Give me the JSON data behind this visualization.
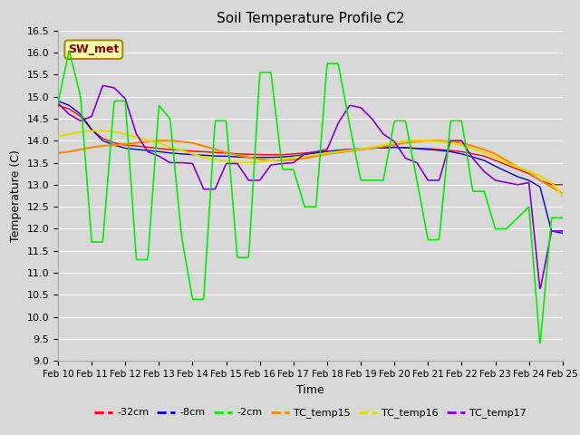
{
  "title": "Soil Temperature Profile C2",
  "xlabel": "Time",
  "ylabel": "Temperature (C)",
  "ylim": [
    9.0,
    16.5
  ],
  "yticks": [
    9.0,
    9.5,
    10.0,
    10.5,
    11.0,
    11.5,
    12.0,
    12.5,
    13.0,
    13.5,
    14.0,
    14.5,
    15.0,
    15.5,
    16.0,
    16.5
  ],
  "bg_color": "#d8d8d8",
  "series_colors": {
    "neg32cm": "#ff0000",
    "neg8cm": "#0000cc",
    "neg2cm": "#00ee00",
    "TC_temp15": "#ff8800",
    "TC_temp16": "#dddd00",
    "TC_temp17": "#8800cc"
  },
  "x_labels": [
    "Feb 10",
    "Feb 11",
    "Feb 12",
    "Feb 13",
    "Feb 14",
    "Feb 15",
    "Feb 16",
    "Feb 17",
    "Feb 18",
    "Feb 19",
    "Feb 20",
    "Feb 21",
    "Feb 22",
    "Feb 23",
    "Feb 24",
    "Feb 25"
  ],
  "annotation_text": "SW_met"
}
